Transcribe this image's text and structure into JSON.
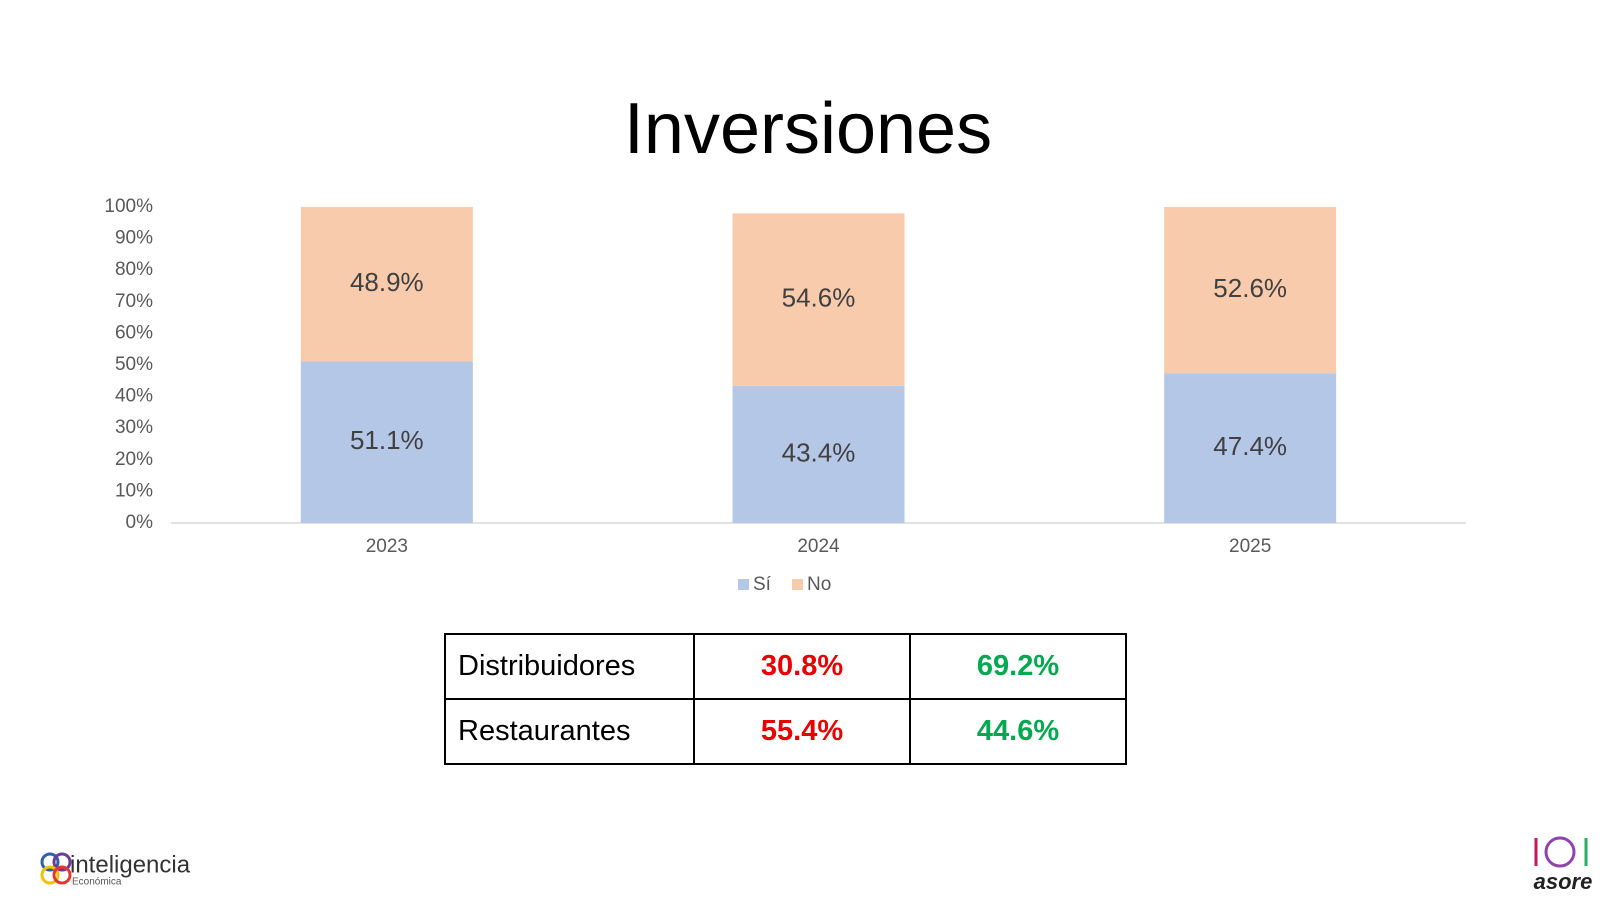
{
  "chart_data": {
    "type": "bar",
    "stacked": true,
    "title": "Inversiones",
    "categories": [
      "2023",
      "2024",
      "2025"
    ],
    "series": [
      {
        "name": "Sí",
        "color": "#b4c7e7",
        "values": [
          51.1,
          43.4,
          47.4
        ],
        "value_labels": [
          "51.1%",
          "43.4%",
          "47.4%"
        ]
      },
      {
        "name": "No",
        "color": "#f8cbad",
        "values": [
          48.9,
          54.6,
          52.6
        ],
        "value_labels": [
          "48.9%",
          "54.6%",
          "52.6%"
        ]
      }
    ],
    "ylim": [
      0,
      100
    ],
    "yticks": [
      {
        "value": 0,
        "label": "0%"
      },
      {
        "value": 10,
        "label": "10%"
      },
      {
        "value": 20,
        "label": "20%"
      },
      {
        "value": 30,
        "label": "30%"
      },
      {
        "value": 40,
        "label": "40%"
      },
      {
        "value": 50,
        "label": "50%"
      },
      {
        "value": 60,
        "label": "60%"
      },
      {
        "value": 70,
        "label": "70%"
      },
      {
        "value": 80,
        "label": "80%"
      },
      {
        "value": 90,
        "label": "90%"
      },
      {
        "value": 100,
        "label": "100%"
      }
    ],
    "grid": false,
    "legend": "bottom"
  },
  "table": {
    "rows": [
      [
        "Distribuidores",
        "30.8%",
        "69.2%"
      ],
      [
        "Restaurantes",
        "55.4%",
        "44.6%"
      ]
    ],
    "column_colors": [
      "#000000",
      "#e60000",
      "#00a84f"
    ]
  },
  "logos": {
    "left": "inteligencia",
    "left_sub": "Económica",
    "right": "asore"
  }
}
